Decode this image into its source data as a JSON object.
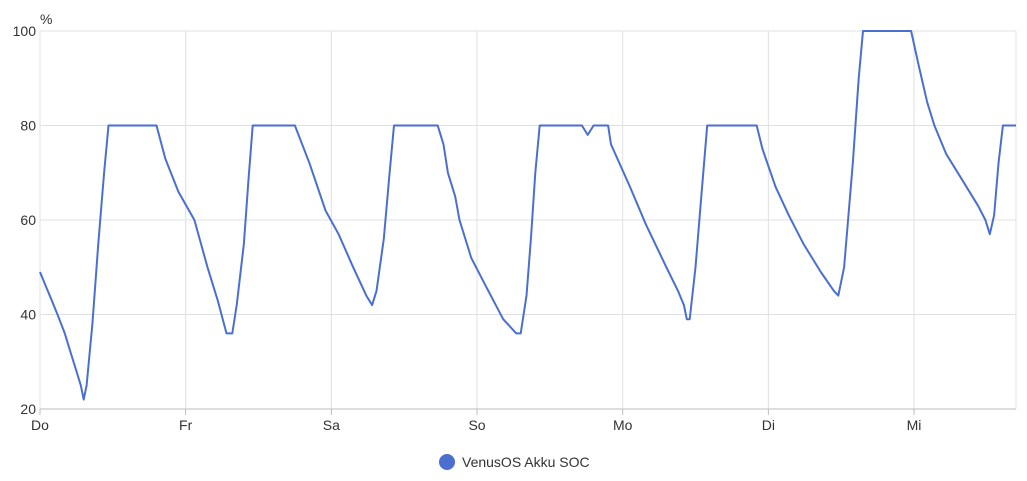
{
  "chart_data": {
    "type": "line",
    "title": "",
    "xlabel": "",
    "ylabel": "%",
    "ylim": [
      20,
      100
    ],
    "yticks": [
      20,
      40,
      60,
      80,
      100
    ],
    "xlim": [
      0,
      6.7
    ],
    "xticks": [
      {
        "label": "Do",
        "x": 0
      },
      {
        "label": "Fr",
        "x": 1
      },
      {
        "label": "Sa",
        "x": 2
      },
      {
        "label": "So",
        "x": 3
      },
      {
        "label": "Mo",
        "x": 4
      },
      {
        "label": "Di",
        "x": 5
      },
      {
        "label": "Mi",
        "x": 6
      }
    ],
    "grid": true,
    "legend_position": "bottom-center",
    "series": [
      {
        "name": "VenusOS Akku SOC",
        "color": "#4b6fd1",
        "points": [
          [
            0.0,
            49
          ],
          [
            0.04,
            46
          ],
          [
            0.08,
            43
          ],
          [
            0.12,
            40
          ],
          [
            0.17,
            36
          ],
          [
            0.2,
            33
          ],
          [
            0.24,
            29
          ],
          [
            0.28,
            25
          ],
          [
            0.3,
            22
          ],
          [
            0.32,
            25
          ],
          [
            0.36,
            38
          ],
          [
            0.4,
            55
          ],
          [
            0.44,
            70
          ],
          [
            0.47,
            80
          ],
          [
            0.6,
            80
          ],
          [
            0.68,
            80
          ],
          [
            0.8,
            80
          ],
          [
            0.86,
            73
          ],
          [
            0.95,
            66
          ],
          [
            1.06,
            60
          ],
          [
            1.15,
            50
          ],
          [
            1.22,
            43
          ],
          [
            1.28,
            36
          ],
          [
            1.32,
            36
          ],
          [
            1.35,
            42
          ],
          [
            1.4,
            55
          ],
          [
            1.43,
            68
          ],
          [
            1.46,
            80
          ],
          [
            1.6,
            80
          ],
          [
            1.75,
            80
          ],
          [
            1.85,
            72
          ],
          [
            1.96,
            62
          ],
          [
            2.05,
            57
          ],
          [
            2.15,
            50
          ],
          [
            2.24,
            44
          ],
          [
            2.28,
            42
          ],
          [
            2.31,
            45
          ],
          [
            2.36,
            56
          ],
          [
            2.4,
            70
          ],
          [
            2.43,
            80
          ],
          [
            2.6,
            80
          ],
          [
            2.73,
            80
          ],
          [
            2.77,
            76
          ],
          [
            2.8,
            70
          ],
          [
            2.85,
            65
          ],
          [
            2.88,
            60
          ],
          [
            2.96,
            52
          ],
          [
            3.06,
            46
          ],
          [
            3.18,
            39
          ],
          [
            3.27,
            36
          ],
          [
            3.3,
            36
          ],
          [
            3.34,
            44
          ],
          [
            3.37,
            56
          ],
          [
            3.4,
            70
          ],
          [
            3.43,
            80
          ],
          [
            3.6,
            80
          ],
          [
            3.72,
            80
          ],
          [
            3.76,
            78
          ],
          [
            3.8,
            80
          ],
          [
            3.9,
            80
          ],
          [
            3.92,
            76
          ],
          [
            4.05,
            67
          ],
          [
            4.16,
            59
          ],
          [
            4.3,
            50
          ],
          [
            4.38,
            45
          ],
          [
            4.42,
            42
          ],
          [
            4.44,
            39
          ],
          [
            4.46,
            39
          ],
          [
            4.5,
            50
          ],
          [
            4.54,
            65
          ],
          [
            4.58,
            80
          ],
          [
            4.75,
            80
          ],
          [
            4.92,
            80
          ],
          [
            4.96,
            75
          ],
          [
            5.05,
            67
          ],
          [
            5.14,
            61
          ],
          [
            5.24,
            55
          ],
          [
            5.36,
            49
          ],
          [
            5.45,
            45
          ],
          [
            5.48,
            44
          ],
          [
            5.52,
            50
          ],
          [
            5.58,
            72
          ],
          [
            5.62,
            90
          ],
          [
            5.65,
            100
          ],
          [
            5.85,
            100
          ],
          [
            5.98,
            100
          ],
          [
            6.03,
            93
          ],
          [
            6.09,
            85
          ],
          [
            6.14,
            80
          ],
          [
            6.22,
            74
          ],
          [
            6.34,
            68
          ],
          [
            6.44,
            63
          ],
          [
            6.49,
            60
          ],
          [
            6.52,
            57
          ],
          [
            6.55,
            61
          ],
          [
            6.58,
            72
          ],
          [
            6.61,
            80
          ],
          [
            6.7,
            80
          ]
        ]
      }
    ]
  }
}
